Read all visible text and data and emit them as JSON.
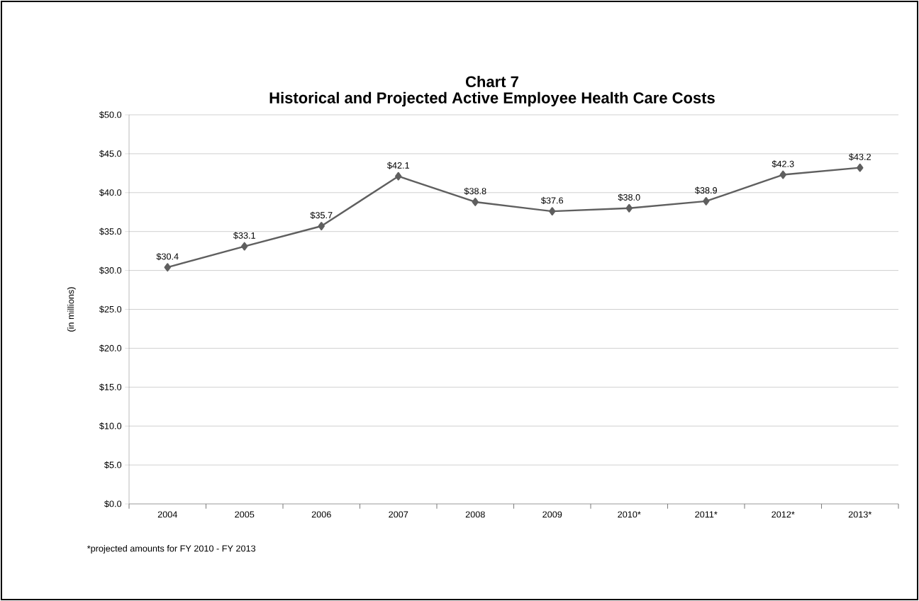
{
  "chart_data": {
    "type": "line",
    "title": "Chart 7",
    "subtitle": "Historical and Projected Active Employee Health Care Costs",
    "ylabel": "(in millions)",
    "categories": [
      "2004",
      "2005",
      "2006",
      "2007",
      "2008",
      "2009",
      "2010*",
      "2011*",
      "2012*",
      "2013*"
    ],
    "values": [
      30.4,
      33.1,
      35.7,
      42.1,
      38.8,
      37.6,
      38.0,
      38.9,
      42.3,
      43.2
    ],
    "value_labels": [
      "$30.4",
      "$33.1",
      "$35.7",
      "$42.1",
      "$38.8",
      "$37.6",
      "$38.0",
      "$38.9",
      "$42.3",
      "$43.2"
    ],
    "color": "#5f5f5f",
    "marker": "diamond",
    "line_style": "solid",
    "grid": "y",
    "ylim": [
      0,
      50
    ],
    "yticks": [
      {
        "value": 0,
        "label": "$0.0"
      },
      {
        "value": 5,
        "label": "$5.0"
      },
      {
        "value": 10,
        "label": "$10.0"
      },
      {
        "value": 15,
        "label": "$15.0"
      },
      {
        "value": 20,
        "label": "$20.0"
      },
      {
        "value": 25,
        "label": "$25.0"
      },
      {
        "value": 30,
        "label": "$30.0"
      },
      {
        "value": 35,
        "label": "$35.0"
      },
      {
        "value": 40,
        "label": "$40.0"
      },
      {
        "value": 45,
        "label": "$45.0"
      },
      {
        "value": 50,
        "label": "$50.0"
      }
    ],
    "annotations": [
      "*projected amounts for FY 2010  - FY 2013"
    ]
  }
}
